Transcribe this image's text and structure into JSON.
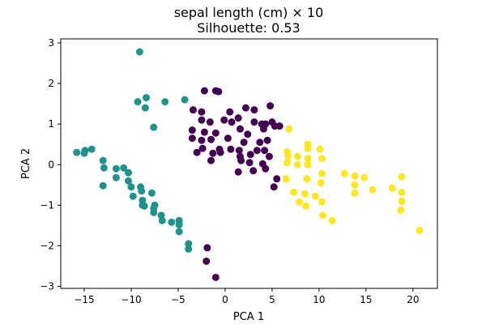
{
  "chart_data": {
    "type": "scatter",
    "title": "sepal length (cm) × 10",
    "subtitle": "Silhouette: 0.53",
    "xlabel": "PCA 1",
    "ylabel": "PCA 2",
    "xlim": [
      -17.5,
      22.6
    ],
    "ylim": [
      -3.05,
      3.1
    ],
    "xticks": [
      -15,
      -10,
      -5,
      0,
      5,
      10,
      15,
      20
    ],
    "yticks": [
      -3,
      -2,
      -1,
      0,
      1,
      2,
      3
    ],
    "grid": false,
    "legend": "none",
    "series": [
      {
        "color": "#21918c",
        "points": [
          [
            -9.1,
            2.78
          ],
          [
            -9.3,
            1.55
          ],
          [
            -8.4,
            1.65
          ],
          [
            -8.5,
            1.4
          ],
          [
            -6.4,
            1.55
          ],
          [
            -4.3,
            1.6
          ],
          [
            -7.6,
            0.92
          ],
          [
            -15.8,
            0.3
          ],
          [
            -14.9,
            0.35
          ],
          [
            -14.2,
            0.38
          ],
          [
            -15.0,
            0.28
          ],
          [
            -13.0,
            0.1
          ],
          [
            -12.9,
            -0.08
          ],
          [
            -11.6,
            -0.1
          ],
          [
            -10.8,
            -0.08
          ],
          [
            -10.3,
            -0.2
          ],
          [
            -11.6,
            -0.32
          ],
          [
            -13.0,
            -0.52
          ],
          [
            -10.3,
            -0.4
          ],
          [
            -10.0,
            -0.55
          ],
          [
            -9.0,
            -0.55
          ],
          [
            -8.9,
            -0.65
          ],
          [
            -7.8,
            -0.7
          ],
          [
            -9.8,
            -0.78
          ],
          [
            -8.8,
            -0.88
          ],
          [
            -8.8,
            -1.0
          ],
          [
            -7.5,
            -1.0
          ],
          [
            -8.6,
            -1.02
          ],
          [
            -7.6,
            -1.08
          ],
          [
            -7.6,
            -1.18
          ],
          [
            -6.8,
            -1.25
          ],
          [
            -6.7,
            -1.38
          ],
          [
            -5.7,
            -1.42
          ],
          [
            -4.9,
            -1.38
          ],
          [
            -4.9,
            -1.48
          ],
          [
            -4.9,
            -1.65
          ],
          [
            -3.9,
            -1.95
          ],
          [
            -3.9,
            -2.08
          ]
        ]
      },
      {
        "color": "#440154",
        "points": [
          [
            -2.2,
            1.82
          ],
          [
            -1.0,
            1.82
          ],
          [
            -0.7,
            1.8
          ],
          [
            -3.4,
            1.35
          ],
          [
            -2.5,
            1.3
          ],
          [
            0.5,
            1.3
          ],
          [
            2.2,
            1.4
          ],
          [
            3.1,
            1.35
          ],
          [
            4.8,
            1.45
          ],
          [
            -2.5,
            1.1
          ],
          [
            -1.6,
            1.05
          ],
          [
            -0.1,
            1.1
          ],
          [
            0.7,
            1.05
          ],
          [
            1.4,
            1.15
          ],
          [
            3.1,
            1.05
          ],
          [
            3.9,
            1.0
          ],
          [
            4.3,
            1.0
          ],
          [
            5.0,
            1.05
          ],
          [
            5.3,
            0.95
          ],
          [
            5.8,
            0.95
          ],
          [
            -3.5,
            0.85
          ],
          [
            -2.2,
            0.8
          ],
          [
            -1.0,
            0.78
          ],
          [
            1.6,
            0.88
          ],
          [
            2.4,
            0.75
          ],
          [
            4.1,
            0.88
          ],
          [
            -3.5,
            0.65
          ],
          [
            -2.5,
            0.6
          ],
          [
            -1.5,
            0.62
          ],
          [
            0.3,
            0.65
          ],
          [
            2.0,
            0.55
          ],
          [
            3.7,
            0.55
          ],
          [
            4.5,
            0.6
          ],
          [
            -2.4,
            0.4
          ],
          [
            -0.6,
            0.38
          ],
          [
            0.6,
            0.38
          ],
          [
            1.5,
            0.35
          ],
          [
            3.4,
            0.35
          ],
          [
            4.2,
            0.35
          ],
          [
            -3.0,
            0.3
          ],
          [
            -1.3,
            0.28
          ],
          [
            -0.5,
            0.3
          ],
          [
            1.6,
            0.2
          ],
          [
            2.7,
            0.25
          ],
          [
            4.7,
            0.2
          ],
          [
            -1.5,
            0.1
          ],
          [
            1.7,
            0.1
          ],
          [
            2.6,
            0.05
          ],
          [
            4.0,
            0.02
          ],
          [
            3.0,
            -0.15
          ],
          [
            4.3,
            -0.1
          ],
          [
            1.4,
            -0.18
          ],
          [
            5.5,
            -0.35
          ],
          [
            5.2,
            -0.55
          ],
          [
            -1.9,
            -2.05
          ],
          [
            -2.0,
            -2.38
          ],
          [
            -1.0,
            -2.78
          ]
        ]
      },
      {
        "color": "#fde725",
        "points": [
          [
            6.8,
            0.88
          ],
          [
            8.8,
            0.5
          ],
          [
            8.8,
            0.4
          ],
          [
            10.1,
            0.38
          ],
          [
            6.6,
            0.32
          ],
          [
            6.7,
            0.2
          ],
          [
            7.7,
            0.2
          ],
          [
            8.8,
            0.15
          ],
          [
            10.3,
            0.15
          ],
          [
            6.6,
            0.05
          ],
          [
            7.7,
            0.0
          ],
          [
            8.8,
            0.0
          ],
          [
            10.3,
            -0.22
          ],
          [
            12.7,
            -0.22
          ],
          [
            13.8,
            -0.28
          ],
          [
            14.8,
            -0.32
          ],
          [
            18.8,
            -0.3
          ],
          [
            6.5,
            -0.35
          ],
          [
            8.7,
            -0.35
          ],
          [
            10.2,
            -0.45
          ],
          [
            13.8,
            -0.5
          ],
          [
            17.8,
            -0.58
          ],
          [
            15.7,
            -0.62
          ],
          [
            7.3,
            -0.68
          ],
          [
            13.8,
            -0.7
          ],
          [
            8.5,
            -0.72
          ],
          [
            9.6,
            -0.78
          ],
          [
            18.8,
            -0.68
          ],
          [
            18.8,
            -0.9
          ],
          [
            7.9,
            -0.92
          ],
          [
            10.3,
            -0.92
          ],
          [
            8.6,
            -1.02
          ],
          [
            18.7,
            -1.12
          ],
          [
            10.4,
            -1.25
          ],
          [
            11.4,
            -1.38
          ],
          [
            20.7,
            -1.62
          ]
        ]
      }
    ]
  }
}
